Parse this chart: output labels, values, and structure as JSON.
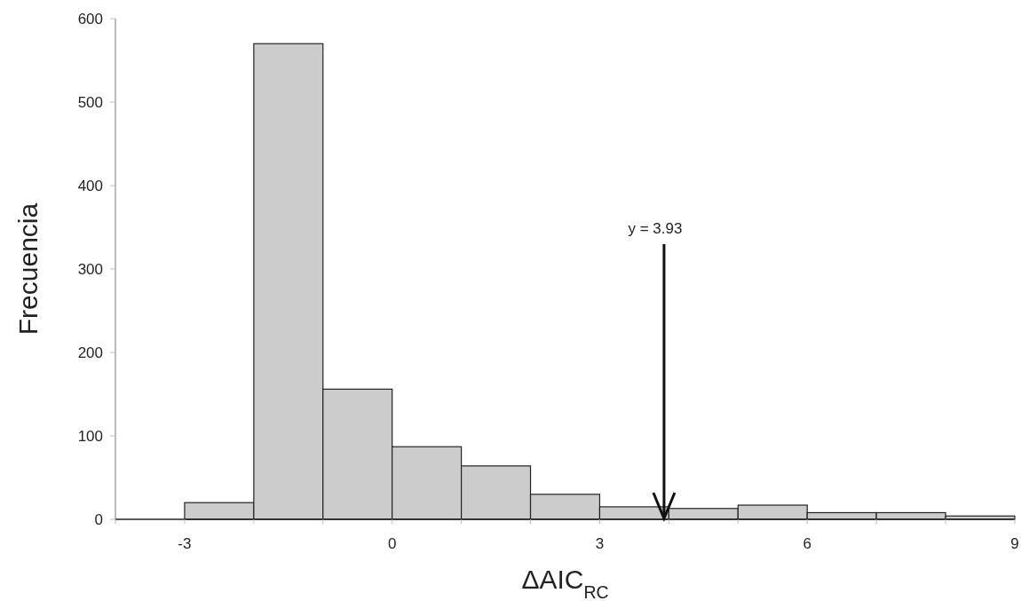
{
  "chart_data": {
    "type": "histogram",
    "xlabel": "ΔAIC$_{RC}$",
    "ylabel": "Frecuencia",
    "bins": [
      -3,
      -2,
      -1,
      0,
      1,
      2,
      3,
      4,
      5,
      6,
      7,
      8,
      9
    ],
    "values": [
      20,
      570,
      156,
      87,
      64,
      30,
      15,
      13,
      17,
      8,
      8,
      4
    ],
    "color": "#cccccc",
    "xlim": [
      -4,
      9
    ],
    "xticks": [
      {
        "value": -4,
        "label": null
      },
      -3,
      {
        "value": -2,
        "label": null
      },
      {
        "value": -1,
        "label": null
      },
      0,
      {
        "value": 1,
        "label": null
      },
      {
        "value": 2,
        "label": null
      },
      3,
      {
        "value": 4,
        "label": null
      },
      {
        "value": 5,
        "label": null
      },
      6,
      {
        "value": 7,
        "label": null
      },
      {
        "value": 8,
        "label": null
      },
      9
    ],
    "ylim": [
      0,
      600
    ],
    "yticks": [
      0,
      100,
      200,
      300,
      400,
      500,
      600
    ],
    "annotations": [
      {
        "text": "y = 3.93",
        "x": 3.93,
        "y": 0
      }
    ]
  }
}
